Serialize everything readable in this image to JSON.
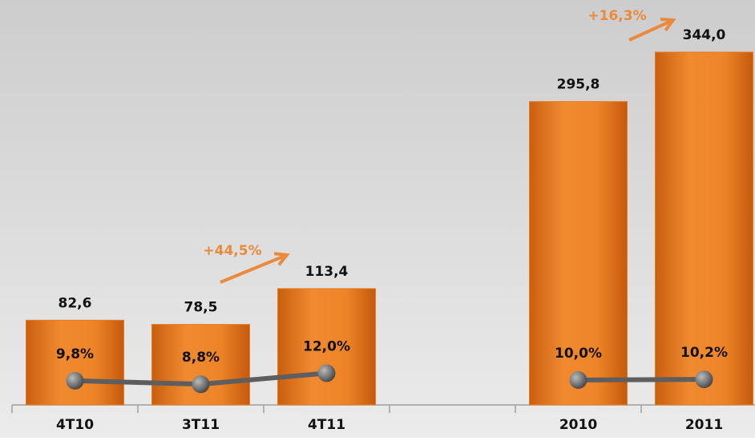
{
  "chart_data": {
    "type": "bar",
    "categories": [
      "4T10",
      "3T11",
      "4T11",
      null,
      "2010",
      "2011"
    ],
    "series": [
      {
        "type": "bar",
        "color": "#e87a22",
        "values": [
          82.6,
          78.5,
          113.4,
          null,
          295.8,
          344.0
        ],
        "value_labels": [
          "82,6",
          "78,5",
          "113,4",
          null,
          "295,8",
          "344,0"
        ]
      },
      {
        "type": "line",
        "axis": "y2",
        "color": "#5e5e5e",
        "values": [
          9.8,
          8.8,
          12.0,
          null,
          10.0,
          10.2
        ],
        "value_labels": [
          "9,8%",
          "8,8%",
          "12,0%",
          null,
          "10,0%",
          "10,2%"
        ]
      }
    ],
    "annotations": [
      {
        "text": "+44,5%",
        "color": "#ea8a3c"
      },
      {
        "text": "+16,3%",
        "color": "#ea8a3c"
      }
    ]
  }
}
